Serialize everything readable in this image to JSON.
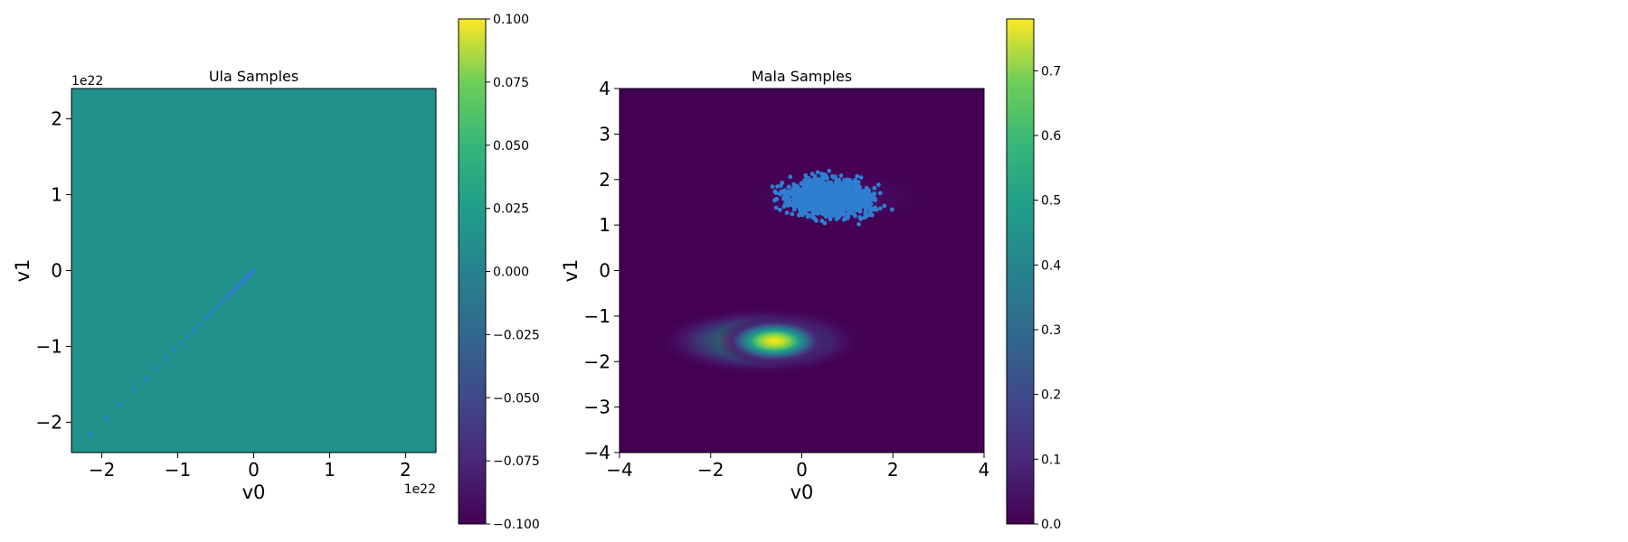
{
  "chart_data": [
    {
      "type": "scatter",
      "title": "Ula Samples",
      "xlabel": "v0",
      "ylabel": "v1",
      "xlim": [
        -2.4e+22,
        2.4e+22
      ],
      "ylim": [
        -2.4e+22,
        2.4e+22
      ],
      "x_offset_text": "1e22",
      "y_offset_text": "1e22",
      "x_ticks": [
        -2,
        -1,
        0,
        1,
        2
      ],
      "y_ticks": [
        -2,
        -1,
        0,
        1,
        2
      ],
      "x_tick_labels": [
        "−2",
        "−1",
        "0",
        "1",
        "2"
      ],
      "y_tick_labels": [
        "−2",
        "−1",
        "0",
        "1",
        "2"
      ],
      "tick_scale": 1e+22,
      "background_value": 0.0,
      "point_color": "#2f7fd1",
      "points": [
        [
          -2.15e+22,
          -2.15e+22
        ],
        [
          -1.94e+22,
          -1.94e+22
        ],
        [
          -1.76e+22,
          -1.76e+22
        ],
        [
          -1.58e+22,
          -1.58e+22
        ],
        [
          -1.43e+22,
          -1.43e+22
        ],
        [
          -1.29e+22,
          -1.29e+22
        ],
        [
          -1.16e+22,
          -1.16e+22
        ],
        [
          -1.05e+22,
          -1.05e+22
        ],
        [
          -9.5e+21,
          -9.5e+21
        ],
        [
          -8.6e+21,
          -8.6e+21
        ],
        [
          -7.8e+21,
          -7.8e+21
        ],
        [
          -7e+21,
          -7e+21
        ],
        [
          -6.3e+21,
          -6.3e+21
        ],
        [
          -5.7e+21,
          -5.7e+21
        ],
        [
          -5.1e+21,
          -5.1e+21
        ],
        [
          -4.6e+21,
          -4.6e+21
        ],
        [
          -4.1e+21,
          -4.1e+21
        ],
        [
          -3.7e+21,
          -3.7e+21
        ],
        [
          -3.3e+21,
          -3.3e+21
        ],
        [
          -2.9e+21,
          -2.9e+21
        ],
        [
          -2.6e+21,
          -2.6e+21
        ],
        [
          -2.3e+21,
          -2.3e+21
        ],
        [
          -2e+21,
          -2e+21
        ],
        [
          -1.7e+21,
          -1.7e+21
        ],
        [
          -1.5e+21,
          -1.5e+21
        ],
        [
          -1.3e+21,
          -1.3e+21
        ],
        [
          -1.1e+21,
          -1.1e+21
        ],
        [
          -9e+20,
          -9e+20
        ],
        [
          -7e+20,
          -7e+20
        ],
        [
          -5e+20,
          -5e+20
        ],
        [
          -4e+20,
          -4e+20
        ],
        [
          -2e+20,
          -2e+20
        ],
        [
          -1e+20,
          -1e+20
        ],
        [
          0,
          0
        ]
      ],
      "colorbar": {
        "min": -0.1,
        "max": 0.1,
        "ticks": [
          -0.1,
          -0.075,
          -0.05,
          -0.025,
          0.0,
          0.025,
          0.05,
          0.075,
          0.1
        ],
        "tick_labels": [
          "−0.100",
          "−0.075",
          "−0.050",
          "−0.025",
          "0.000",
          "0.025",
          "0.050",
          "0.075",
          "0.100"
        ],
        "colormap": "viridis"
      }
    },
    {
      "type": "scatter",
      "title": "Mala Samples",
      "xlabel": "v0",
      "ylabel": "v1",
      "xlim": [
        -4,
        4
      ],
      "ylim": [
        -4,
        4
      ],
      "x_ticks": [
        -4,
        -2,
        0,
        2,
        4
      ],
      "y_ticks": [
        -4,
        -3,
        -2,
        -1,
        0,
        1,
        2,
        3,
        4
      ],
      "x_tick_labels": [
        "−4",
        "−2",
        "0",
        "2",
        "4"
      ],
      "y_tick_labels": [
        "−4",
        "−3",
        "−2",
        "−1",
        "0",
        "1",
        "2",
        "3",
        "4"
      ],
      "point_color": "#2f7fd1",
      "density": {
        "peak_value": 0.78,
        "center": [
          -0.6,
          -1.55
        ],
        "x_range": [
          -3.2,
          1.4
        ],
        "y_range": [
          -2.3,
          -0.8
        ],
        "note_hidden_mode": {
          "center": [
            0.8,
            1.6
          ],
          "x_range": [
            -1.5,
            3.0
          ],
          "y_range": [
            0.9,
            2.3
          ]
        }
      },
      "sample_cloud": {
        "x_range": [
          -1.4,
          2.9
        ],
        "y_range": [
          0.9,
          2.25
        ],
        "center": [
          0.6,
          1.6
        ],
        "count": 1600
      },
      "colorbar": {
        "min": 0.0,
        "max": 0.78,
        "ticks": [
          0.0,
          0.1,
          0.2,
          0.3,
          0.4,
          0.5,
          0.6,
          0.7
        ],
        "tick_labels": [
          "0.0",
          "0.1",
          "0.2",
          "0.3",
          "0.4",
          "0.5",
          "0.6",
          "0.7"
        ],
        "colormap": "viridis"
      }
    }
  ]
}
